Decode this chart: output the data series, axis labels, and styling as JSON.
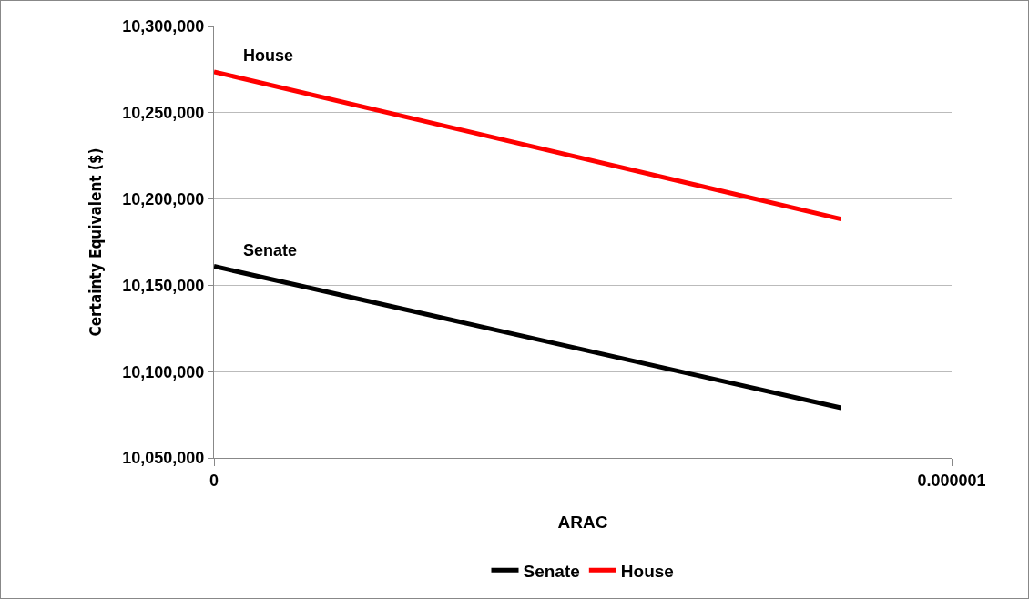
{
  "chart_data": {
    "type": "line",
    "xlabel": "ARAC",
    "ylabel": "Certainty Equivalent ($)",
    "x": [
      0,
      8.5e-07
    ],
    "xlim": [
      0,
      1e-06
    ],
    "xticks": [
      0,
      {
        "value": 1e-06,
        "label": "0.000001"
      }
    ],
    "ylim": [
      10050000,
      10300000
    ],
    "yticks": [
      {
        "value": 10050000,
        "label": "10,050,000"
      },
      {
        "value": 10100000,
        "label": "10,100,000"
      },
      {
        "value": 10150000,
        "label": "10,150,000"
      },
      {
        "value": 10200000,
        "label": "10,200,000"
      },
      {
        "value": 10250000,
        "label": "10,250,000"
      },
      {
        "value": 10300000,
        "label": "10,300,000"
      }
    ],
    "series": [
      {
        "name": "Senate",
        "color": "#000000",
        "values": [
          10161000,
          10079000
        ]
      },
      {
        "name": "House",
        "color": "#ff0000",
        "values": [
          10273700,
          10188400
        ]
      }
    ],
    "grid": "y",
    "legend": "bottom",
    "marker": "none",
    "line_style": "solid"
  }
}
